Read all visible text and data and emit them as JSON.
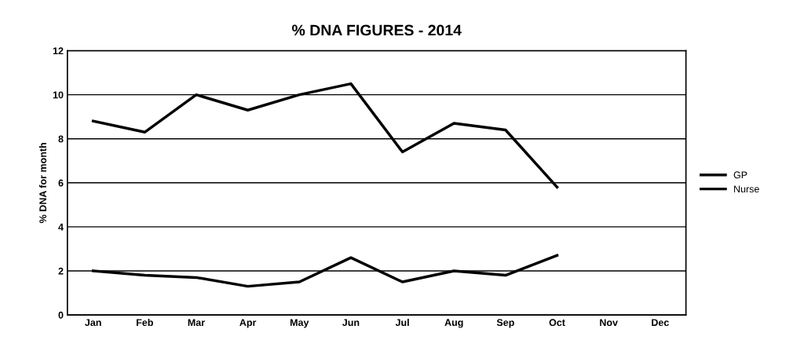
{
  "chart_data": {
    "type": "line",
    "title": "% DNA FIGURES - 2014",
    "ylabel": "% DNA for month",
    "categories": [
      "Jan",
      "Feb",
      "Mar",
      "Apr",
      "May",
      "Jun",
      "Jul",
      "Aug",
      "Sep",
      "Oct",
      "Nov",
      "Dec"
    ],
    "series": [
      {
        "name": "GP",
        "color": "#000000",
        "values": [
          8.8,
          8.3,
          10.0,
          9.3,
          10.0,
          10.5,
          7.4,
          8.7,
          8.4,
          5.8,
          null,
          null
        ]
      },
      {
        "name": "Nurse",
        "color": "#000000",
        "values": [
          2.0,
          1.8,
          1.7,
          1.3,
          1.5,
          2.6,
          1.5,
          2.0,
          1.8,
          2.7,
          null,
          null
        ]
      }
    ],
    "ylim": [
      0,
      12
    ],
    "yticks": [
      0,
      2,
      4,
      6,
      8,
      10,
      12
    ],
    "grid": "y",
    "legend": "right",
    "marker": "none",
    "line_style": "solid"
  }
}
